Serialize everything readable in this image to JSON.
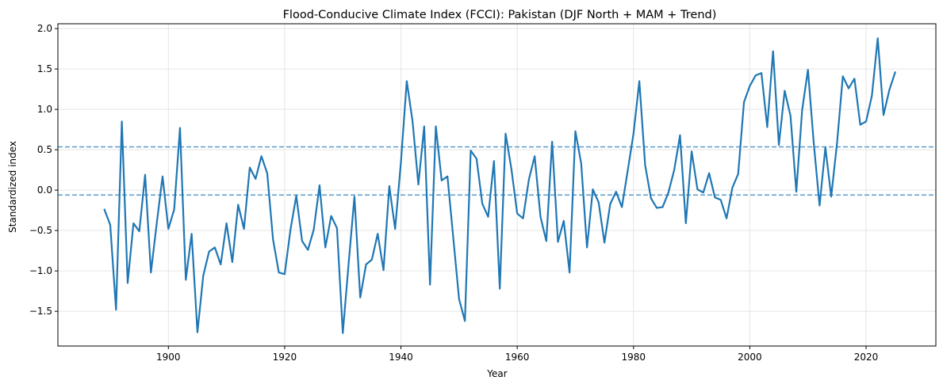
{
  "chart_data": {
    "type": "line",
    "title": "Flood-Conducive Climate Index (FCCI): Pakistan (DJF North + MAM + Trend)",
    "xlabel": "Year",
    "ylabel": "Standardized index",
    "xlim": [
      1881,
      2032
    ],
    "ylim": [
      -1.93,
      2.06
    ],
    "xticks": [
      1900,
      1920,
      1940,
      1960,
      1980,
      2000,
      2020
    ],
    "yticks": [
      -1.5,
      -1.0,
      -0.5,
      0.0,
      0.5,
      1.0,
      1.5,
      2.0
    ],
    "ytick_labels": [
      "−1.5",
      "−1.0",
      "−0.5",
      "0.0",
      "0.5",
      "1.0",
      "1.5",
      "2.0"
    ],
    "grid": true,
    "hlines": [
      0.535,
      -0.06
    ],
    "colors": {
      "series": "#1f77b4",
      "hline": "#5b9bc8",
      "grid": "#e5e5e5"
    },
    "series": [
      {
        "name": "FCCI",
        "x_start": 1889,
        "values": [
          -0.24,
          -0.43,
          -1.48,
          0.85,
          -1.15,
          -0.41,
          -0.51,
          0.19,
          -1.02,
          -0.41,
          0.17,
          -0.48,
          -0.24,
          0.77,
          -1.11,
          -0.54,
          -1.76,
          -1.06,
          -0.76,
          -0.71,
          -0.92,
          -0.41,
          -0.89,
          -0.18,
          -0.48,
          0.28,
          0.14,
          0.42,
          0.21,
          -0.61,
          -1.02,
          -1.04,
          -0.49,
          -0.07,
          -0.63,
          -0.74,
          -0.49,
          0.06,
          -0.71,
          -0.32,
          -0.47,
          -1.77,
          -0.91,
          -0.08,
          -1.33,
          -0.92,
          -0.86,
          -0.54,
          -0.99,
          0.05,
          -0.48,
          0.35,
          1.35,
          0.85,
          0.07,
          0.79,
          -1.17,
          0.79,
          0.12,
          0.17,
          -0.59,
          -1.35,
          -1.62,
          0.49,
          0.39,
          -0.17,
          -0.33,
          0.36,
          -1.22,
          0.7,
          0.26,
          -0.29,
          -0.35,
          0.13,
          0.42,
          -0.33,
          -0.63,
          0.6,
          -0.64,
          -0.38,
          -1.02,
          0.73,
          0.33,
          -0.71,
          0.01,
          -0.15,
          -0.65,
          -0.17,
          -0.02,
          -0.21,
          0.24,
          0.7,
          1.35,
          0.31,
          -0.1,
          -0.22,
          -0.21,
          -0.03,
          0.25,
          0.68,
          -0.41,
          0.48,
          0.01,
          -0.03,
          0.21,
          -0.09,
          -0.12,
          -0.35,
          0.03,
          0.2,
          1.09,
          1.29,
          1.42,
          1.45,
          0.78,
          1.72,
          0.56,
          1.23,
          0.92,
          -0.02,
          0.99,
          1.49,
          0.58,
          -0.19,
          0.53,
          -0.08,
          0.58,
          1.41,
          1.26,
          1.38,
          0.81,
          0.85,
          1.17,
          1.88,
          0.93,
          1.24,
          1.46
        ]
      }
    ]
  }
}
